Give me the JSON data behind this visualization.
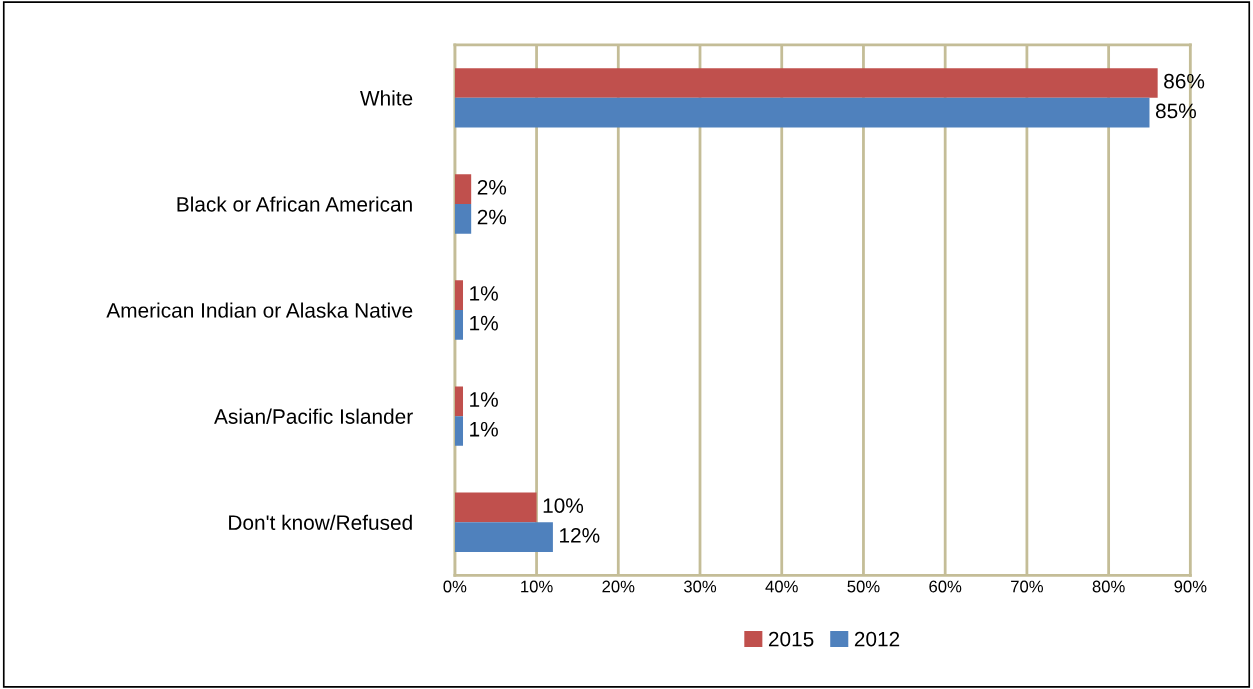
{
  "chart_data": {
    "type": "bar",
    "orientation": "horizontal",
    "categories": [
      "White",
      "Black or African American",
      "American Indian or Alaska Native",
      "Asian/Pacific Islander",
      "Don't know/Refused"
    ],
    "series": [
      {
        "name": "2015",
        "color": "#c0504d",
        "values": [
          86,
          2,
          1,
          1,
          10
        ],
        "value_labels": [
          "86%",
          "2%",
          "1%",
          "1%",
          "10%"
        ]
      },
      {
        "name": "2012",
        "color": "#4f81bd",
        "values": [
          85,
          2,
          1,
          1,
          12
        ],
        "value_labels": [
          "85%",
          "2%",
          "1%",
          "1%",
          "12%"
        ]
      }
    ],
    "xlim": [
      0,
      90
    ],
    "xticks": [
      {
        "value": 0,
        "label": "0%"
      },
      {
        "value": 10,
        "label": "10%"
      },
      {
        "value": 20,
        "label": "20%"
      },
      {
        "value": 30,
        "label": "30%"
      },
      {
        "value": 40,
        "label": "40%"
      },
      {
        "value": 50,
        "label": "50%"
      },
      {
        "value": 60,
        "label": "60%"
      },
      {
        "value": 70,
        "label": "70%"
      },
      {
        "value": 80,
        "label": "80%"
      },
      {
        "value": 90,
        "label": "90%"
      }
    ],
    "grid": "x",
    "legend": "bottom"
  }
}
